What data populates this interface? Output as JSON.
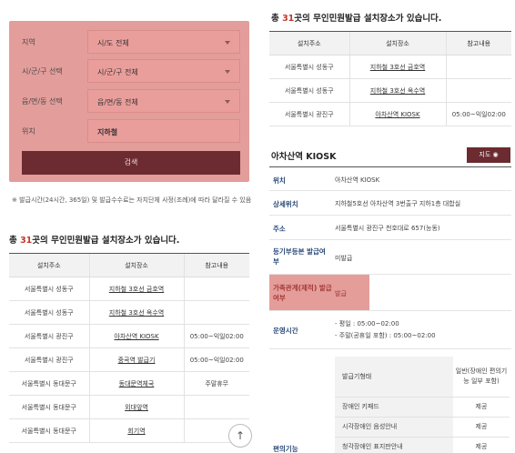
{
  "filter": {
    "rows": [
      {
        "label": "지역",
        "value": "시/도 전체"
      },
      {
        "label": "시/군/구 선택",
        "value": "시/군/구 전체"
      },
      {
        "label": "읍/면/동 선택",
        "value": "읍/면/동 전체"
      },
      {
        "label": "위치",
        "value": "지하철"
      }
    ],
    "search_label": "검색"
  },
  "note": "※ 발급시간(24시간, 365일) 및 발급수수료는 자치단체 사정(조례)에 따라 달라질 수 있음",
  "result": {
    "prefix": "총 ",
    "count": "31",
    "suffix": "곳의 무인민원발급 설치장소가 있습니다.",
    "headers": [
      "설치주소",
      "설치장소",
      "참고내용"
    ],
    "rows": [
      [
        "서울특별시 성동구",
        "지하철 3호선 금호역",
        ""
      ],
      [
        "서울특별시 성동구",
        "지하철 3호선 옥수역",
        ""
      ],
      [
        "서울특별시 광진구",
        "아차산역 KIOSK",
        "05:00~익일02:00"
      ],
      [
        "서울특별시 광진구",
        "중곡역 발급기",
        "05:00~익일02:00"
      ],
      [
        "서울특별시 동대문구",
        "동대문역체국",
        "주말휴무"
      ],
      [
        "서울특별시 동대문구",
        "외대앞역",
        ""
      ],
      [
        "서울특별시 동대문구",
        "회기역",
        ""
      ]
    ]
  },
  "right": {
    "rows": [
      [
        "서울특별시 성동구",
        "지하철 3호선 금호역",
        ""
      ],
      [
        "서울특별시 성동구",
        "지하철 3호선 옥수역",
        ""
      ],
      [
        "서울특별시 광진구",
        "아차산역 KIOSK",
        "05:00~익일02:00"
      ]
    ],
    "kiosk_title": "아차산역 KIOSK",
    "map_label": "지도",
    "details": [
      {
        "label": "위치",
        "value": "아차산역 KIOSK"
      },
      {
        "label": "상세위치",
        "value": "지하철5호선 아차산역 3번출구 지하1층 대합실"
      },
      {
        "label": "주소",
        "value": "서울특별시 광진구 천호대로 657(능동)"
      },
      {
        "label": "등기부등본 발급여부",
        "value": "미발급"
      },
      {
        "label": "가족관계(제적) 발급여부",
        "value": "발급"
      },
      {
        "label": "운영시간",
        "value1": "- 평일 : 05:00~02:00",
        "value2": "- 주말(공휴일 포함) : 05:00~02:00"
      },
      {
        "label": "편의기능"
      }
    ],
    "sub_table": [
      [
        "발급기형태",
        "일반(장애인 편의기능 일부 포함)"
      ],
      [
        "장애인 키패드",
        "제공"
      ],
      [
        "시각장애인 음성안내",
        "제공"
      ],
      [
        "청각장애인 표지판안내",
        "제공"
      ]
    ]
  },
  "colors": {
    "accent": "#6b2b30",
    "highlight": "#e39d9a",
    "count": "#c0392b"
  },
  "icons": {
    "scroll_top": "arrow-up-icon",
    "map": "map-pin-icon",
    "select": "chevron-down-icon"
  }
}
